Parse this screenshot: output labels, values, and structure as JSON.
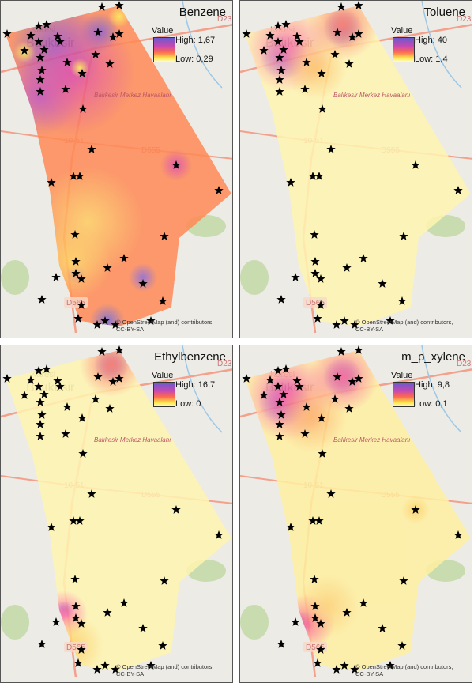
{
  "panels": [
    {
      "title": "Benzene",
      "legend": {
        "header": "Value",
        "high": "High: 1,67",
        "low": "Low: 0,29"
      },
      "attribution": [
        "© OpenStreetMap (and) contributors,",
        "CC-BY-SA"
      ]
    },
    {
      "title": "Toluene",
      "legend": {
        "header": "Value",
        "high": "High: 40",
        "low": "Low: 1,4"
      },
      "attribution": [
        "© OpenStreetMap (and) contributors,",
        "CC-BY-SA"
      ]
    },
    {
      "title": "Ethylbenzene",
      "legend": {
        "header": "Value",
        "high": "High: 16,7",
        "low": "Low: 0"
      },
      "attribution": [
        "© OpenStreetMap (and) contributors,",
        "CC-BY-SA"
      ]
    },
    {
      "title": "m_p_xylene",
      "legend": {
        "header": "Value",
        "high": "High: 9,8",
        "low": "Low: 0,1"
      },
      "attribution": [
        "© OpenStreetMap (and) contributors,",
        "CC-BY-SA"
      ]
    }
  ],
  "basemap_labels": {
    "district": "Karesi",
    "city": "Balıkesir",
    "airport": "Balıkesir Merkez Havaalanı",
    "road1": "10-51",
    "road2": "D555",
    "road3": "D23",
    "road4": "D565"
  },
  "colors": {
    "high": "#6a5acd",
    "mid_high": "#e040a0",
    "mid": "#ff7050",
    "low": "#ffe84a",
    "lowest": "#fffbd0",
    "marker": "#000000"
  },
  "marker_icon": "star-icon"
}
